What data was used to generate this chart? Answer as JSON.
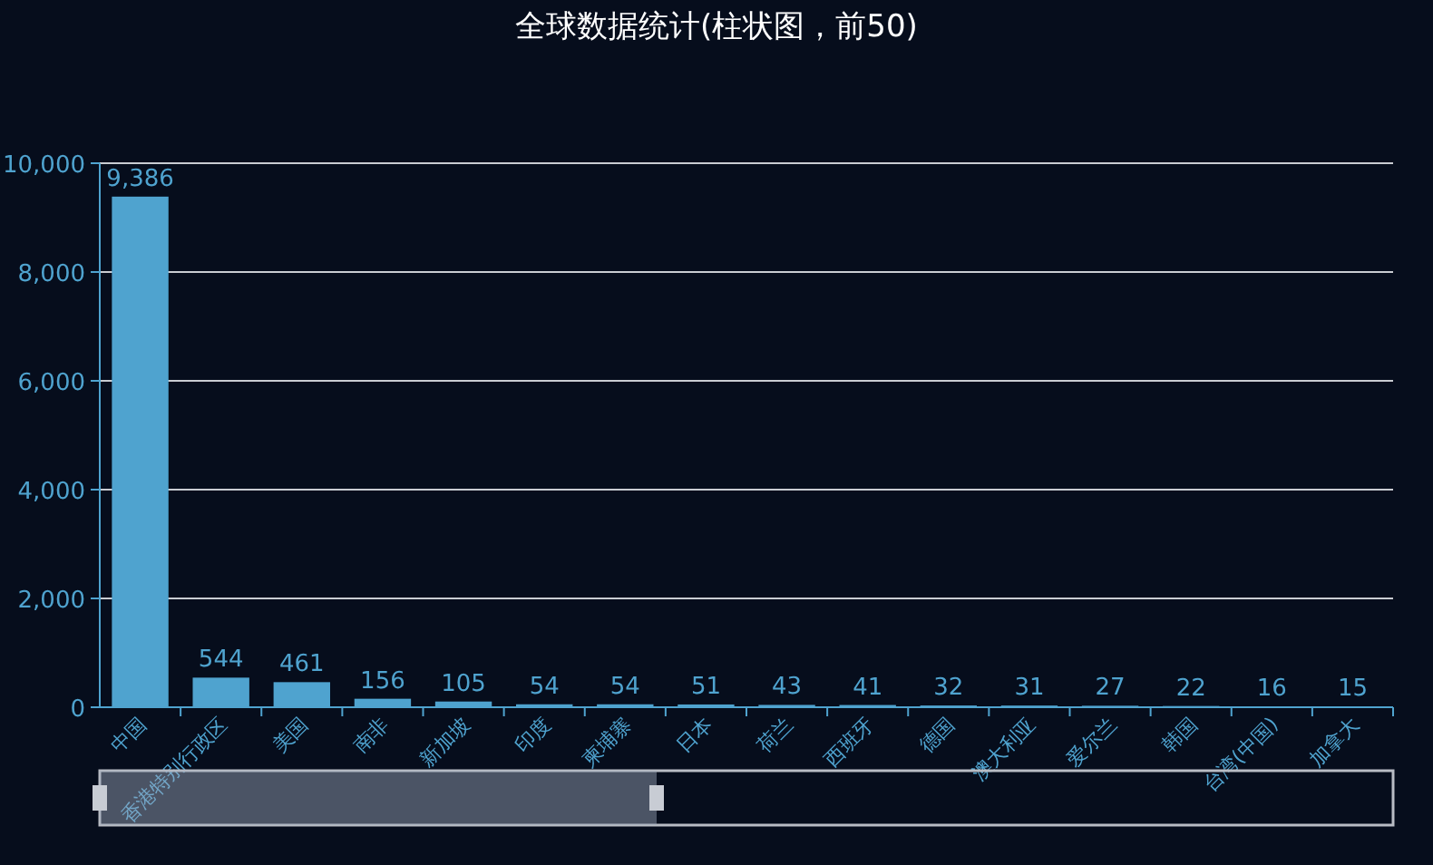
{
  "chart_data": {
    "type": "bar",
    "title": "全球数据统计(柱状图，前50)",
    "categories": [
      "中国",
      "香港特别行政区",
      "美国",
      "南非",
      "新加坡",
      "印度",
      "柬埔寨",
      "日本",
      "荷兰",
      "西班牙",
      "德国",
      "澳大利亚",
      "爱尔兰",
      "韩国",
      "台湾(中国)",
      "加拿大"
    ],
    "values": [
      9386,
      544,
      461,
      156,
      105,
      54,
      54,
      51,
      43,
      41,
      32,
      31,
      27,
      22,
      16,
      15
    ],
    "color": "#4fa3cf",
    "value_labels": [
      "9,386",
      "544",
      "461",
      "156",
      "105",
      "54",
      "54",
      "51",
      "43",
      "41",
      "32",
      "31",
      "27",
      "22",
      "16",
      "15"
    ],
    "ylim": [
      0,
      10000
    ],
    "yticks": [
      {
        "value": 0,
        "label": "0"
      },
      {
        "value": 2000,
        "label": "2,000"
      },
      {
        "value": 4000,
        "label": "4,000"
      },
      {
        "value": 6000,
        "label": "6,000"
      },
      {
        "value": 8000,
        "label": "8,000"
      },
      {
        "value": 10000,
        "label": "10,000"
      }
    ],
    "grid": "y"
  }
}
